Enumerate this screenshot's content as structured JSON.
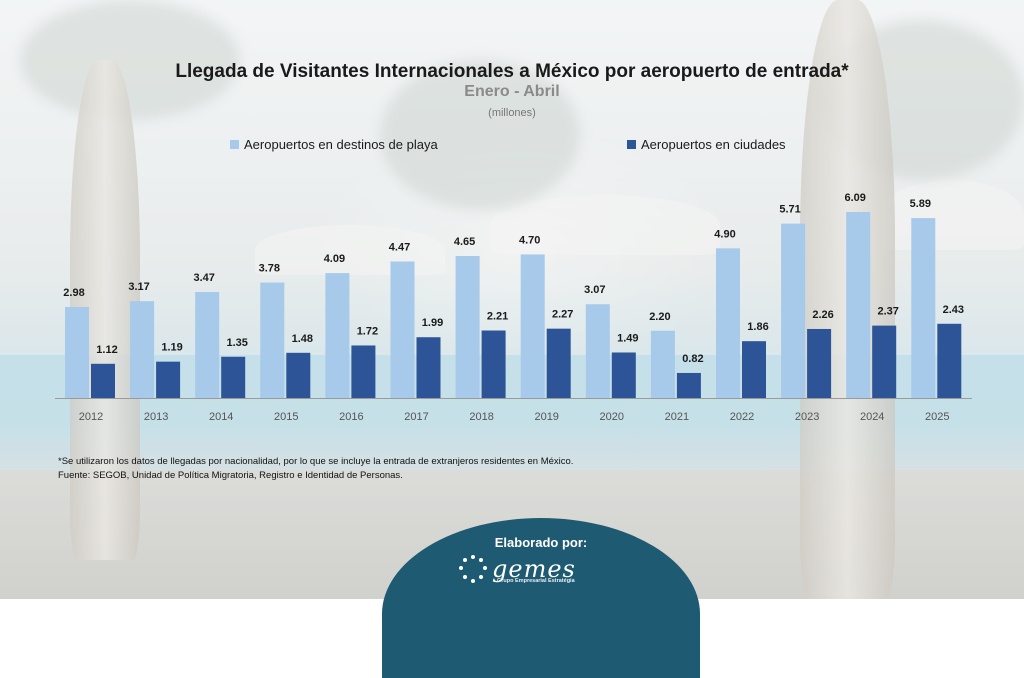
{
  "chart_data": {
    "type": "bar",
    "title": "Llegada de Visitantes Internacionales a México por aeropuerto de entrada*",
    "subtitle": "Enero - Abril",
    "units": "(millones)",
    "categories": [
      "2012",
      "2013",
      "2014",
      "2015",
      "2016",
      "2017",
      "2018",
      "2019",
      "2020",
      "2021",
      "2022",
      "2023",
      "2024",
      "2025"
    ],
    "series": [
      {
        "name": "Aeropuertos en destinos de playa",
        "color": "#a7c9ea",
        "values": [
          2.98,
          3.17,
          3.47,
          3.78,
          4.09,
          4.47,
          4.65,
          4.7,
          3.07,
          2.2,
          4.9,
          5.71,
          6.09,
          5.89
        ],
        "labels": [
          "2.98",
          "3.17",
          "3.47",
          "3.78",
          "4.09",
          "4.47",
          "4.65",
          "4.70",
          "3.07",
          "2.20",
          "4.90",
          "5.71",
          "6.09",
          "5.89"
        ]
      },
      {
        "name": "Aeropuertos en ciudades",
        "color": "#2c5496",
        "values": [
          1.12,
          1.19,
          1.35,
          1.48,
          1.72,
          1.99,
          2.21,
          2.27,
          1.49,
          0.82,
          1.86,
          2.26,
          2.37,
          2.43
        ],
        "labels": [
          "1.12",
          "1.19",
          "1.35",
          "1.48",
          "1.72",
          "1.99",
          "2.21",
          "2.27",
          "1.49",
          "0.82",
          "1.86",
          "2.26",
          "2.37",
          "2.43"
        ]
      }
    ],
    "ylim": [
      0,
      7
    ],
    "grid": false,
    "legend": "top"
  },
  "notes": {
    "line1": "*Se utilizaron los datos de llegadas por nacionalidad, por lo que se incluye la entrada de extranjeros residentes en México.",
    "line2": "Fuente: SEGOB, Unidad de Política Migratoria, Registro e Identidad de Personas."
  },
  "footer": {
    "label": "Elaborado por:",
    "brand": "gemes",
    "tagline": "Grupo Empresarial Estratégia"
  }
}
